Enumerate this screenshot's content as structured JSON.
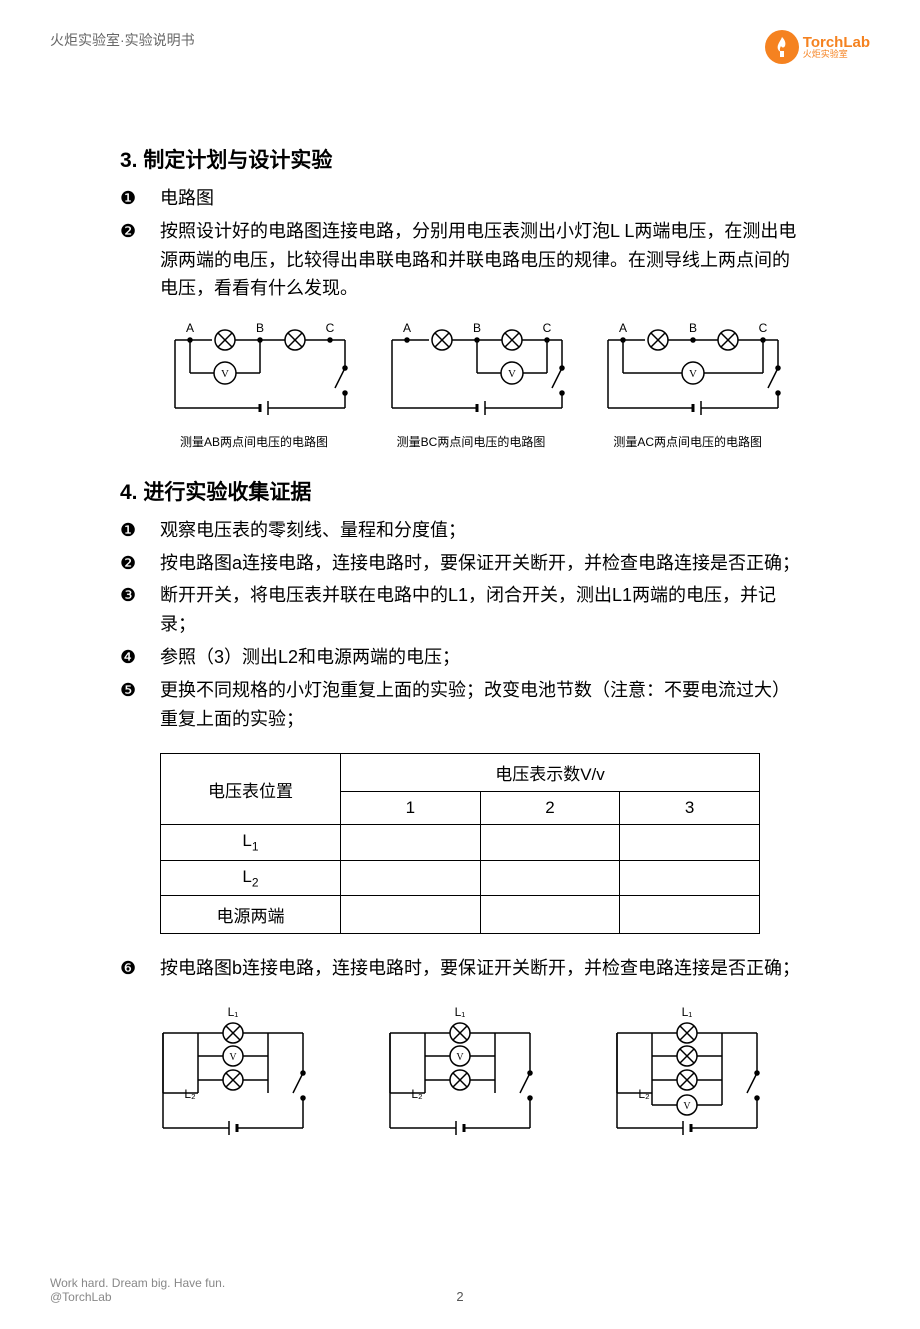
{
  "header": {
    "breadcrumb": "火炬实验室·实验说明书",
    "logo_main": "TorchLab",
    "logo_sub": "火炬实验室",
    "logo_color": "#f58220"
  },
  "section3": {
    "title": "3. 制定计划与设计实验",
    "items": [
      {
        "num": "❶",
        "text": "电路图"
      },
      {
        "num": "❷",
        "text": "按照设计好的电路图连接电路，分别用电压表测出小灯泡L L两端电压，在测出电源两端的电压，比较得出串联电路和并联电路电压的规律。在测导线上两点间的电压，看看有什么发现。"
      }
    ],
    "circuits": [
      {
        "points": [
          "A",
          "B",
          "C"
        ],
        "voltmeter_between": [
          0,
          1
        ],
        "caption": "测量AB两点间电压的电路图"
      },
      {
        "points": [
          "A",
          "B",
          "C"
        ],
        "voltmeter_between": [
          1,
          2
        ],
        "caption": "测量BC两点间电压的电路图"
      },
      {
        "points": [
          "A",
          "B",
          "C"
        ],
        "voltmeter_between": [
          0,
          2
        ],
        "caption": "测量AC两点间电压的电路图"
      }
    ]
  },
  "section4": {
    "title": "4. 进行实验收集证据",
    "items": [
      {
        "num": "❶",
        "text": "观察电压表的零刻线、量程和分度值；"
      },
      {
        "num": "❷",
        "text": "按电路图a连接电路，连接电路时，要保证开关断开，并检查电路连接是否正确；"
      },
      {
        "num": "❸",
        "text": "断开开关，将电压表并联在电路中的L1，闭合开关，测出L1两端的电压，并记录；"
      },
      {
        "num": "❹",
        "text": "参照（3）测出L2和电源两端的电压；"
      },
      {
        "num": "❺",
        "text": "更换不同规格的小灯泡重复上面的实验；改变电池节数（注意：不要电流过大）重复上面的实验；"
      }
    ],
    "table": {
      "col_header_main": "电压表示数V/v",
      "row_header_label": "电压表位置",
      "trial_labels": [
        "1",
        "2",
        "3"
      ],
      "rows": [
        {
          "label": "L",
          "sub": "1",
          "values": [
            "",
            "",
            ""
          ]
        },
        {
          "label": "L",
          "sub": "2",
          "values": [
            "",
            "",
            ""
          ]
        },
        {
          "label": "电源两端",
          "sub": "",
          "values": [
            "",
            "",
            ""
          ]
        }
      ]
    },
    "item6": {
      "num": "❻",
      "text": "按电路图b连接电路，连接电路时，要保证开关断开，并检查电路连接是否正确；"
    },
    "parallel_circuits": [
      {
        "top_label": "L₁",
        "bottom_label": "L₂",
        "voltmeter_pos": "top"
      },
      {
        "top_label": "L₁",
        "bottom_label": "L₂",
        "voltmeter_pos": "middle"
      },
      {
        "top_label": "L₁",
        "bottom_label": "L₂",
        "voltmeter_pos": "bottom"
      }
    ]
  },
  "footer": {
    "tagline1": "Work hard. Dream big. Have fun.",
    "tagline2": "@TorchLab",
    "page": "2"
  },
  "colors": {
    "text": "#000000",
    "muted": "#666666",
    "footer": "#888888",
    "accent": "#f58220",
    "stroke": "#000000"
  }
}
